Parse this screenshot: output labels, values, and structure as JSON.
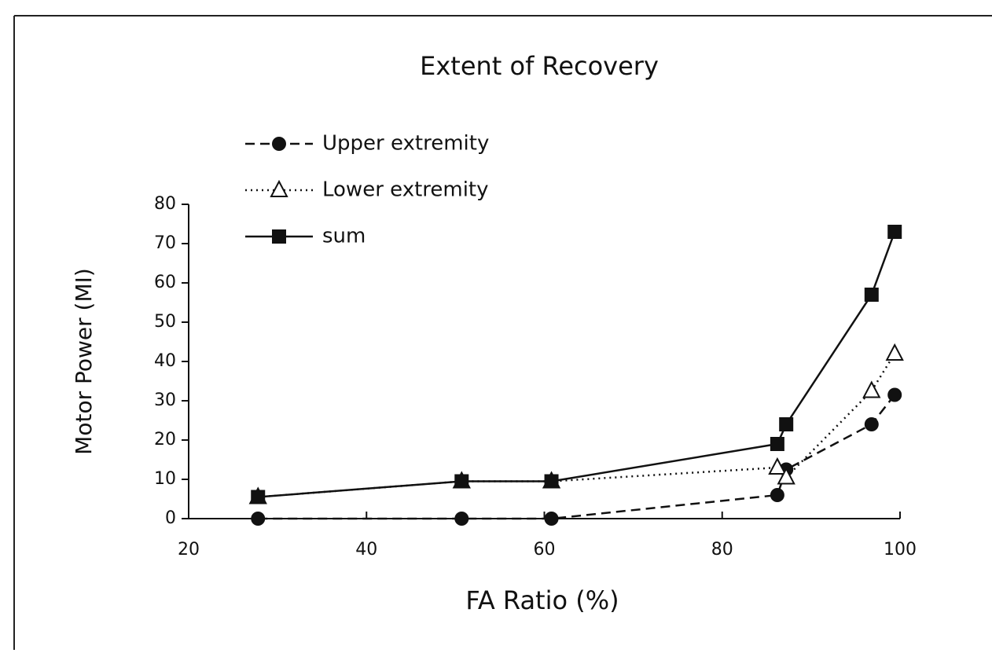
{
  "chart_data": {
    "type": "line",
    "title": "Extent of Recovery",
    "x_label": "FA Ratio (%)",
    "y_label": "Motor Power (MI)",
    "x": [
      27.8,
      50.7,
      60.8,
      86.2,
      87.2,
      96.8,
      99.4
    ],
    "series": [
      {
        "name": "Upper extremity",
        "color": "#111111",
        "line": "dashed",
        "marker": "circle",
        "values": [
          0,
          0,
          0,
          6,
          12.5,
          24,
          31.5
        ]
      },
      {
        "name": "Lower extremity",
        "color": "#111111",
        "line": "dotted",
        "marker": "triangle",
        "values": [
          5.5,
          9.5,
          9.5,
          13,
          10.5,
          32.5,
          42
        ]
      },
      {
        "name": "sum",
        "color": "#111111",
        "line": "solid",
        "marker": "square",
        "values": [
          5.5,
          9.5,
          9.5,
          19,
          24,
          57,
          73
        ]
      }
    ],
    "xlim": [
      20,
      100
    ],
    "xticks": [
      20,
      40,
      60,
      80,
      100
    ],
    "ylim": [
      0,
      80
    ],
    "yticks": [
      0,
      10,
      20,
      30,
      40,
      50,
      60,
      70,
      80
    ],
    "legend": "upper left"
  }
}
